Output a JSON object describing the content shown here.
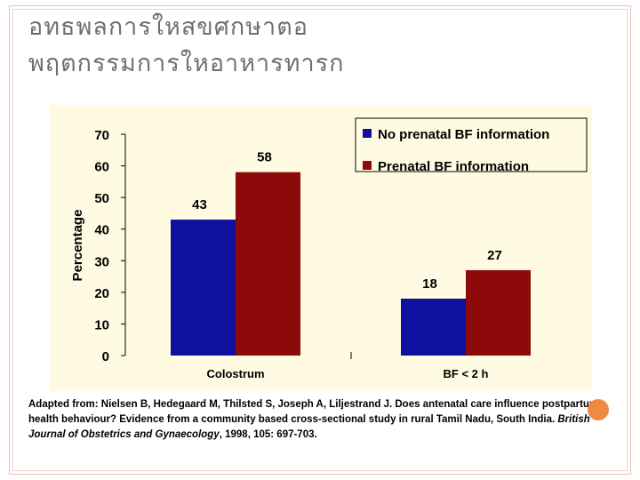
{
  "slide": {
    "title_line1": "อทธพลการใหสขศกษาตอ",
    "title_line2": "พฤตกรรมการใหอาหารทารก",
    "accent_color": "#ef8a45"
  },
  "caption": {
    "text_before": "Adapted from: Nielsen B, Hedegaard M, Thilsted S, Joseph A, Liljestrand J. Does antenatal care influence postpartum health behaviour? Evidence from a community based cross-sectional study in rural Tamil Nadu, South India. ",
    "journal": "British Journal of Obstetrics and Gynaecology",
    "text_after": ", 1998, 105: 697-703."
  },
  "chart_data": {
    "type": "bar",
    "title": "",
    "xlabel": "",
    "ylabel": "Percentage",
    "ylim": [
      0,
      70
    ],
    "yticks": [
      0,
      10,
      20,
      30,
      40,
      50,
      60,
      70
    ],
    "categories": [
      "Colostrum",
      "BF < 2 h"
    ],
    "series": [
      {
        "name": "No prenatal BF information",
        "color": "#1010a0",
        "values": [
          43,
          18
        ]
      },
      {
        "name": "Prenatal BF information",
        "color": "#8c0a0a",
        "values": [
          58,
          27
        ]
      }
    ],
    "background": "#fffbe3",
    "legend": "top-right"
  }
}
